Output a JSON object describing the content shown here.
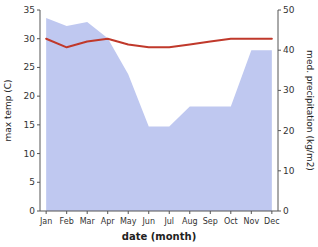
{
  "chart_data": {
    "type": "line",
    "categories": [
      "Jan",
      "Feb",
      "Mar",
      "Apr",
      "May",
      "Jun",
      "Jul",
      "Aug",
      "Sep",
      "Oct",
      "Nov",
      "Dec"
    ],
    "xlabel": "date (month)",
    "ylabel": "max temp (C)",
    "y2label": "med. precipitation (kg/m2)",
    "ylim": [
      0,
      35
    ],
    "yticks": [
      0,
      5,
      10,
      15,
      20,
      25,
      30,
      35
    ],
    "y2lim": [
      0,
      50
    ],
    "y2ticks": [
      0,
      10,
      20,
      30,
      40,
      50
    ],
    "grid": false,
    "series": [
      {
        "type": "area",
        "axis": "y2",
        "color": "#bfc8f0",
        "values": [
          48,
          46,
          47,
          43,
          34,
          21,
          21,
          26,
          26,
          26,
          40,
          40
        ]
      },
      {
        "type": "line",
        "color": "#c0392b",
        "values": [
          30.0,
          28.5,
          29.5,
          30.0,
          29.0,
          28.5,
          28.5,
          29.0,
          29.5,
          30.0,
          30.0,
          30.0
        ]
      }
    ]
  }
}
